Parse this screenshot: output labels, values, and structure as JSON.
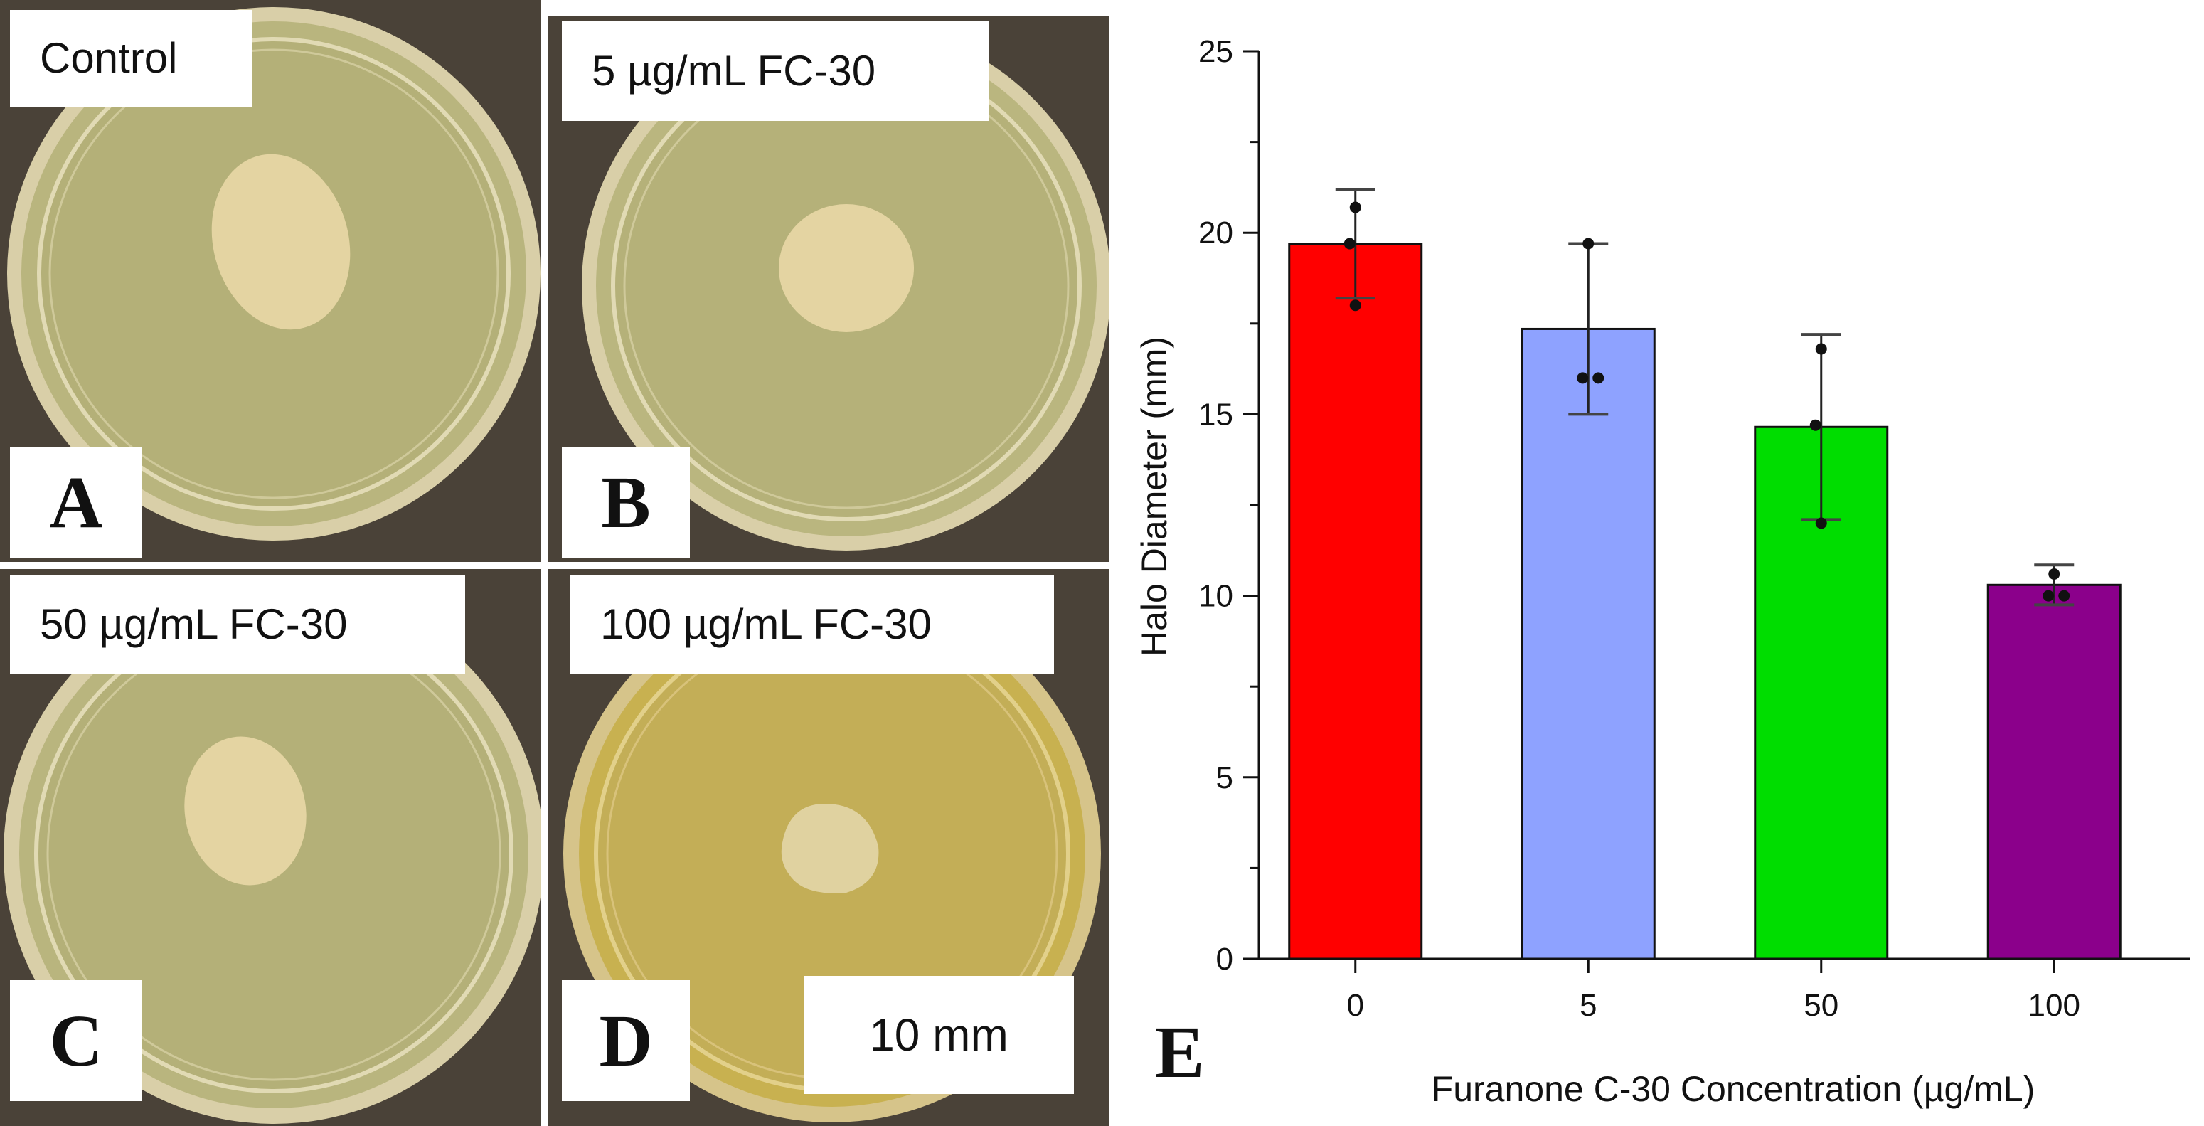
{
  "panels": {
    "a": {
      "letter": "A",
      "label": "Control"
    },
    "b": {
      "letter": "B",
      "label": "5 µg/mL FC-30"
    },
    "c": {
      "letter": "C",
      "label": "50 µg/mL FC-30"
    },
    "d": {
      "letter": "D",
      "label": "100 µg/mL FC-30"
    },
    "e": {
      "letter": "E"
    },
    "scale_bar_label": "10 mm"
  },
  "colors": {
    "agar": "#b7b27a",
    "plate_rim": "#d6c89a",
    "colony": "#e6d6a6",
    "agar_yellow": "#c9b14e"
  },
  "chart_data": {
    "type": "bar",
    "categories": [
      "0",
      "5",
      "50",
      "100"
    ],
    "values": [
      19.7,
      17.35,
      14.65,
      10.3
    ],
    "error": [
      1.5,
      2.35,
      2.55,
      0.55
    ],
    "points": [
      [
        20.7,
        19.7,
        18.0
      ],
      [
        19.7,
        16.0,
        16.0
      ],
      [
        16.8,
        14.7,
        12.0
      ],
      [
        10.6,
        10.0,
        10.0
      ]
    ],
    "bar_colors": [
      "#ff0000",
      "#8ea2ff",
      "#00dd00",
      "#8b008b"
    ],
    "xlabel": "Furanone C-30 Concentration (µg/mL)",
    "ylabel": "Halo Diameter (mm)",
    "ylim": [
      0,
      25
    ],
    "yticks": [
      "0",
      "5",
      "10",
      "15",
      "20",
      "25"
    ],
    "grid": false,
    "legend": "none"
  }
}
